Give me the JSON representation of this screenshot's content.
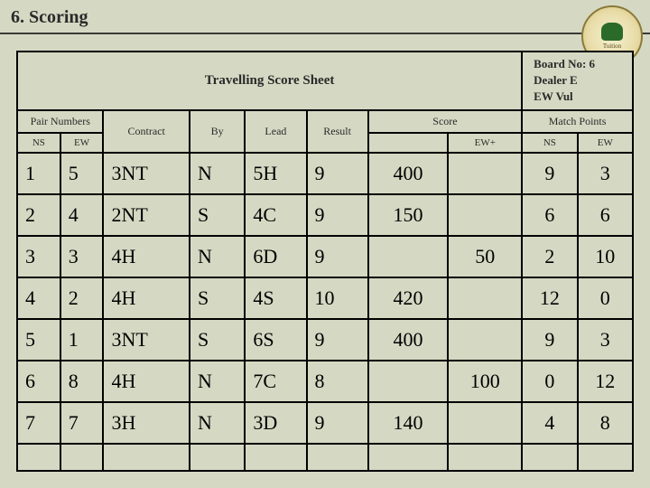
{
  "page": {
    "title": "6. Scoring",
    "logo_label": "Tuition"
  },
  "header": {
    "sheet_title": "Travelling Score Sheet",
    "board_no": "Board No: 6",
    "dealer": "Dealer E",
    "vul": "EW Vul"
  },
  "columns": {
    "pair": "Pair Numbers",
    "contract": "Contract",
    "by": "By",
    "lead": "Lead",
    "result": "Result",
    "score": "Score",
    "match": "Match Points",
    "ns": "NS",
    "ew": "EW",
    "ewplus": "EW+"
  },
  "rows": [
    {
      "ns": "1",
      "ew": "5",
      "contract": "3NT",
      "by": "N",
      "lead": "5H",
      "result": "9",
      "score_ns": "400",
      "score_ew": "",
      "mp_ns": "9",
      "mp_ew": "3"
    },
    {
      "ns": "2",
      "ew": "4",
      "contract": "2NT",
      "by": "S",
      "lead": "4C",
      "result": "9",
      "score_ns": "150",
      "score_ew": "",
      "mp_ns": "6",
      "mp_ew": "6"
    },
    {
      "ns": "3",
      "ew": "3",
      "contract": "4H",
      "by": "N",
      "lead": "6D",
      "result": "9",
      "score_ns": "",
      "score_ew": "50",
      "mp_ns": "2",
      "mp_ew": "10"
    },
    {
      "ns": "4",
      "ew": "2",
      "contract": "4H",
      "by": "S",
      "lead": "4S",
      "result": "10",
      "score_ns": "420",
      "score_ew": "",
      "mp_ns": "12",
      "mp_ew": "0"
    },
    {
      "ns": "5",
      "ew": "1",
      "contract": "3NT",
      "by": "S",
      "lead": "6S",
      "result": "9",
      "score_ns": "400",
      "score_ew": "",
      "mp_ns": "9",
      "mp_ew": "3"
    },
    {
      "ns": "6",
      "ew": "8",
      "contract": "4H",
      "by": "N",
      "lead": "7C",
      "result": "8",
      "score_ns": "",
      "score_ew": "100",
      "mp_ns": "0",
      "mp_ew": "12"
    },
    {
      "ns": "7",
      "ew": "7",
      "contract": "3H",
      "by": "N",
      "lead": "3D",
      "result": "9",
      "score_ns": "140",
      "score_ew": "",
      "mp_ns": "4",
      "mp_ew": "8"
    }
  ],
  "style": {
    "bg": "#d5d9c3",
    "border": "#000000",
    "text": "#2a2a2a",
    "font_family": "Georgia serif",
    "title_fontsize": 20,
    "cell_fontsize": 22,
    "colhead_fontsize": 12,
    "col_widths_pct": [
      8,
      8,
      14,
      9,
      10,
      10,
      14,
      12,
      8,
      8
    ]
  }
}
